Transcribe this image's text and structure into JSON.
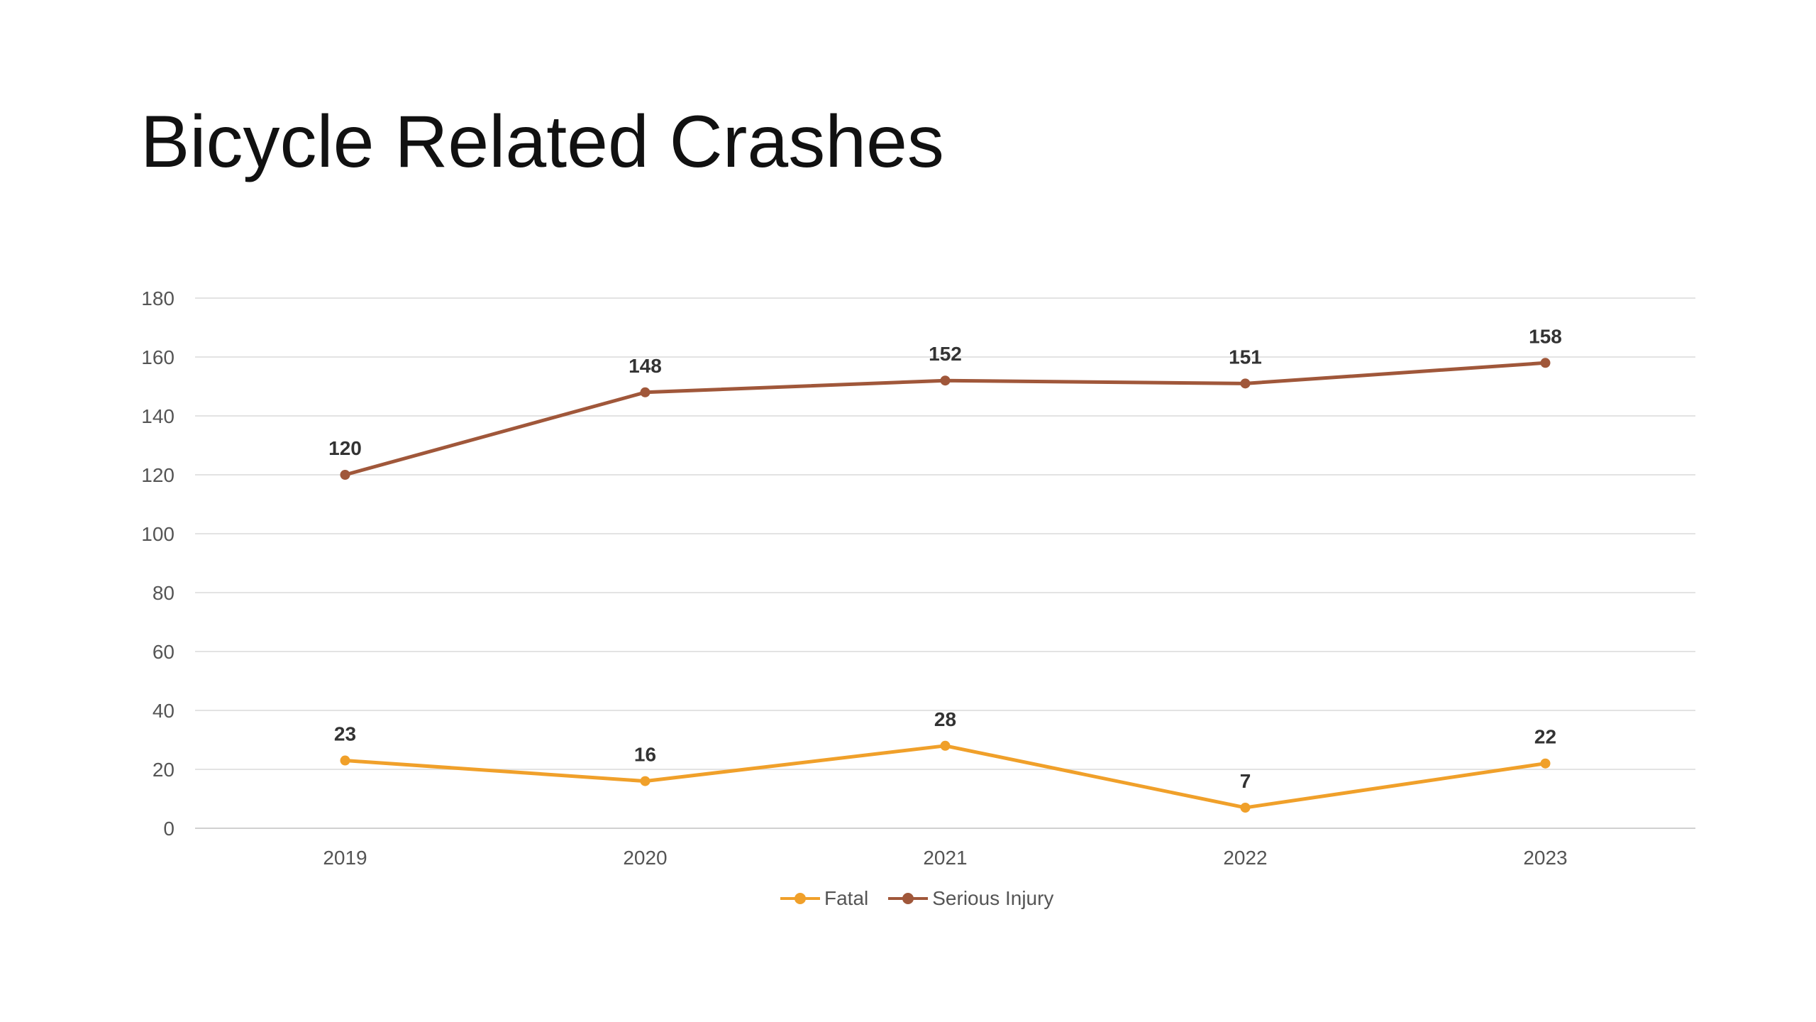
{
  "title": "Bicycle Related Crashes",
  "chart_data": {
    "type": "line",
    "categories": [
      "2019",
      "2020",
      "2021",
      "2022",
      "2023"
    ],
    "ylim": [
      0,
      180
    ],
    "yticks": [
      0,
      20,
      40,
      60,
      80,
      100,
      120,
      140,
      160,
      180
    ],
    "grid": true,
    "legend": "bottom",
    "series": [
      {
        "name": "Fatal",
        "color": "#F0A02A",
        "values": [
          23,
          16,
          28,
          7,
          22
        ]
      },
      {
        "name": "Serious Injury",
        "color": "#A0573A",
        "values": [
          120,
          148,
          152,
          151,
          158
        ]
      }
    ]
  }
}
